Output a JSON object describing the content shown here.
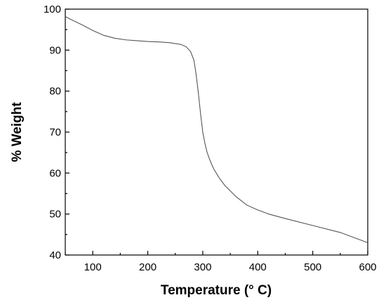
{
  "chart_data": {
    "type": "line",
    "title": "",
    "xlabel": "Temperature (° C)",
    "ylabel": "% Weight",
    "xlim": [
      50,
      600
    ],
    "ylim": [
      40,
      100
    ],
    "x_ticks": [
      100,
      200,
      300,
      400,
      500,
      600
    ],
    "y_ticks": [
      40,
      50,
      60,
      70,
      80,
      90,
      100
    ],
    "grid": false,
    "series": [
      {
        "x": [
          50,
          60,
          80,
          100,
          120,
          140,
          160,
          180,
          200,
          220,
          240,
          260,
          270,
          278,
          284,
          288,
          292,
          296,
          300,
          304,
          308,
          312,
          316,
          320,
          330,
          340,
          360,
          380,
          400,
          420,
          450,
          500,
          550,
          580,
          600
        ],
        "y": [
          98.2,
          97.5,
          96.2,
          94.8,
          93.6,
          92.9,
          92.5,
          92.3,
          92.1,
          92.0,
          91.8,
          91.4,
          90.8,
          89.6,
          87.5,
          84.0,
          79.5,
          74.5,
          70.0,
          67.2,
          65.0,
          63.5,
          62.2,
          61.0,
          58.8,
          57.0,
          54.3,
          52.2,
          51.0,
          50.0,
          48.9,
          47.2,
          45.5,
          44.0,
          43.0
        ]
      }
    ]
  }
}
